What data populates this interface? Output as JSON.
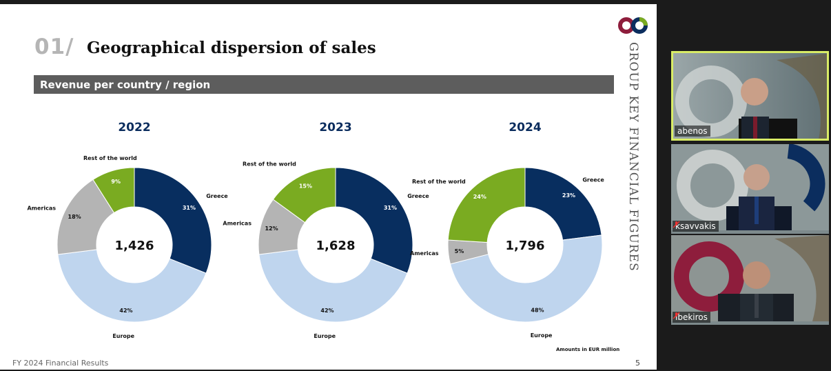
{
  "slide": {
    "number": "01/",
    "title": "Geographical dispersion of sales",
    "section": "Revenue per country / region",
    "side_title": "GROUP KEY FINANCIAL FIGURES",
    "footnote": "Amounts in EUR million",
    "footer_left": "FY 2024  Financial Results",
    "page_number": "5",
    "logo": "company-logo"
  },
  "colors": {
    "greece": "#082e5f",
    "europe": "#bfd5ee",
    "americas": "#b4b4b4",
    "rest": "#7aab21"
  },
  "chart_data": [
    {
      "type": "pie",
      "title": "2022",
      "center_label": "1,426",
      "categories": [
        "Greece",
        "Europe",
        "Americas",
        "Rest of the world"
      ],
      "values": [
        31,
        42,
        18,
        9
      ],
      "labels": [
        "31%",
        "42%",
        "18%",
        "9%"
      ]
    },
    {
      "type": "pie",
      "title": "2023",
      "center_label": "1,628",
      "categories": [
        "Greece",
        "Europe",
        "Americas",
        "Rest of the world"
      ],
      "values": [
        31,
        42,
        12,
        15
      ],
      "labels": [
        "31%",
        "42%",
        "12%",
        "15%"
      ]
    },
    {
      "type": "pie",
      "title": "2024",
      "center_label": "1,796",
      "categories": [
        "Greece",
        "Europe",
        "Americas",
        "Rest of the world"
      ],
      "values": [
        23,
        48,
        5,
        24
      ],
      "labels": [
        "23%",
        "48%",
        "5%",
        "24%"
      ]
    }
  ],
  "participants": [
    {
      "name": "abenos",
      "muted": false,
      "active": true
    },
    {
      "name": "ksavvakis",
      "muted": true,
      "active": false
    },
    {
      "name": "ibekiros",
      "muted": true,
      "active": false
    }
  ]
}
